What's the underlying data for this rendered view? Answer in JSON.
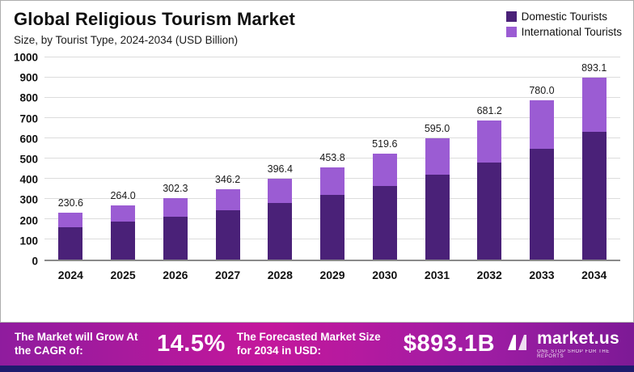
{
  "header": {
    "title": "Global Religious Tourism Market",
    "subtitle": "Size, by Tourist Type, 2024-2034 (USD Billion)"
  },
  "legend": {
    "items": [
      {
        "label": "Domestic Tourists",
        "color": "#4a2178"
      },
      {
        "label": "International Tourists",
        "color": "#9b5cd3"
      }
    ]
  },
  "chart_data": {
    "type": "bar",
    "stacked": true,
    "title": "Global Religious Tourism Market",
    "subtitle": "Size, by Tourist Type, 2024-2034 (USD Billion)",
    "xlabel": "",
    "ylabel": "USD Billion",
    "ylim": [
      0,
      1000
    ],
    "yticks": [
      0,
      100,
      200,
      300,
      400,
      500,
      600,
      700,
      800,
      900,
      1000
    ],
    "grid": true,
    "legend_position": "top-right",
    "categories": [
      "2024",
      "2025",
      "2026",
      "2027",
      "2028",
      "2029",
      "2030",
      "2031",
      "2032",
      "2033",
      "2034"
    ],
    "series": [
      {
        "name": "Domestic Tourists",
        "color": "#4a2178",
        "values": [
          160,
          185,
          212,
          242,
          277,
          317,
          363,
          416,
          476,
          545,
          628
        ]
      },
      {
        "name": "International Tourists",
        "color": "#9b5cd3",
        "values": [
          70.6,
          79.0,
          90.3,
          104.2,
          119.4,
          136.8,
          156.6,
          179.0,
          205.2,
          235.0,
          265.1
        ]
      }
    ],
    "totals": [
      230.6,
      264.0,
      302.3,
      346.2,
      396.4,
      453.8,
      519.6,
      595.0,
      681.2,
      780.0,
      893.1
    ],
    "total_labels": [
      "230.6",
      "264.0",
      "302.3",
      "346.2",
      "396.4",
      "453.8",
      "519.6",
      "595.0",
      "681.2",
      "780.0",
      "893.1"
    ]
  },
  "banner": {
    "cagr_label": "The Market will Grow At the CAGR of:",
    "cagr_value": "14.5%",
    "forecast_label": "The Forecasted Market Size for 2034 in USD:",
    "forecast_value": "$893.1B",
    "brand": "market.us",
    "brand_tagline": "One Stop Shop For The Reports"
  }
}
